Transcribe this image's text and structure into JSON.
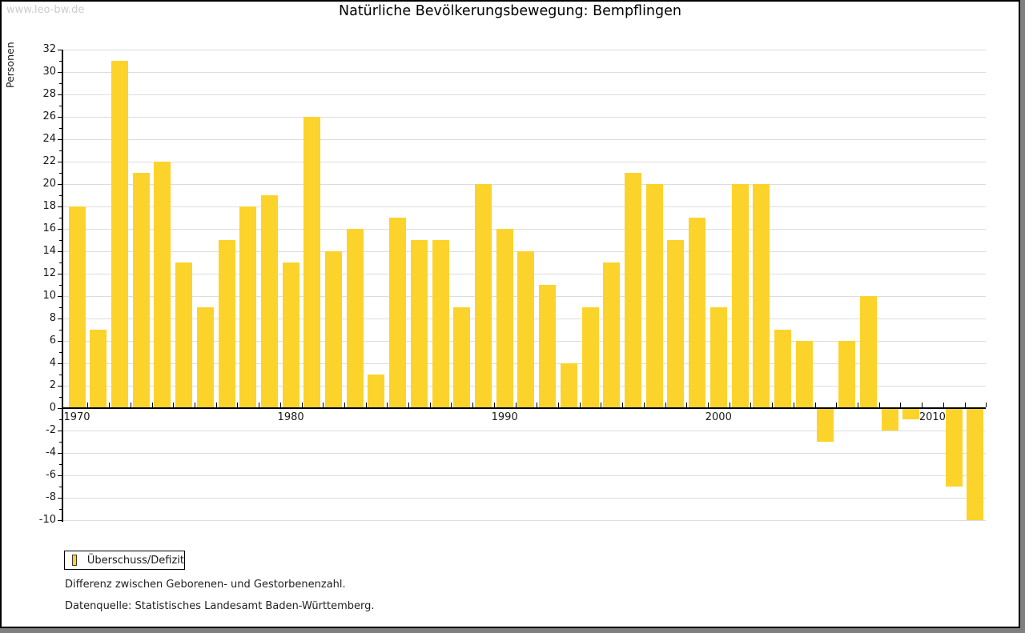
{
  "watermark": "www.leo-bw.de",
  "title": "Natürliche Bevölkerungsbewegung: Bempflingen",
  "legend": {
    "label": "Überschuss/Defizit"
  },
  "notes": [
    "Differenz zwischen Geborenen- und Gestorbenenzahl.",
    "Datenquelle: Statistisches Landesamt Baden-Württemberg."
  ],
  "colors": {
    "bar": "#FCD32B",
    "axis": "#000000",
    "grid": "#DDDDDD",
    "tick_text": "#1a1a1a",
    "watermark": "#CCCCCC",
    "frame_shadow": "#808080"
  },
  "chart_data": {
    "type": "bar",
    "title": "Natürliche Bevölkerungsbewegung: Bempflingen",
    "ylabel": "Personen",
    "xlabel": "",
    "ylim": [
      -10,
      32
    ],
    "y_tick_step": 2,
    "y_minor_tick_step": 1,
    "grid": true,
    "legend_position": "bottom-left",
    "series_name": "Überschuss/Defizit",
    "x_tick_labels": [
      "1970",
      "1980",
      "1990",
      "2000",
      "2010"
    ],
    "categories": [
      1970,
      1971,
      1972,
      1973,
      1974,
      1975,
      1976,
      1977,
      1978,
      1979,
      1980,
      1981,
      1982,
      1983,
      1984,
      1985,
      1986,
      1987,
      1988,
      1989,
      1990,
      1991,
      1992,
      1993,
      1994,
      1995,
      1996,
      1997,
      1998,
      1999,
      2000,
      2001,
      2002,
      2003,
      2004,
      2005,
      2006,
      2007,
      2008,
      2009,
      2010,
      2011,
      2012
    ],
    "values": [
      18,
      7,
      31,
      21,
      22,
      13,
      9,
      15,
      18,
      19,
      13,
      26,
      14,
      16,
      3,
      17,
      15,
      15,
      9,
      20,
      16,
      14,
      11,
      4,
      9,
      13,
      21,
      20,
      15,
      17,
      9,
      20,
      20,
      7,
      6,
      -3,
      6,
      10,
      -2,
      -1,
      0,
      -7,
      -10
    ]
  }
}
